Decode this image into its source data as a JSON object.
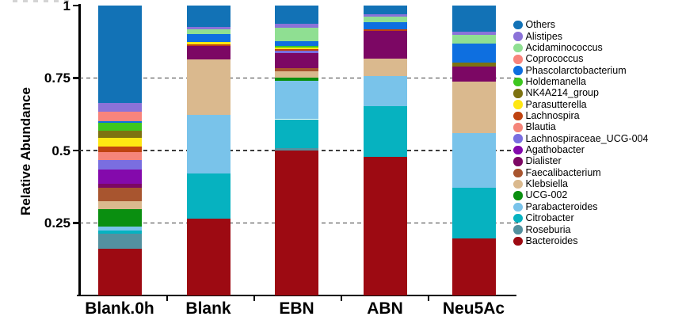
{
  "chart_data": {
    "type": "bar",
    "stacked": true,
    "ylabel": "Relative Abundance",
    "ylim": [
      0,
      1
    ],
    "yticks": [
      {
        "value": 1,
        "label": "1"
      },
      {
        "value": 0.75,
        "label": "0.75"
      },
      {
        "value": 0.5,
        "label": "0.5"
      },
      {
        "value": 0.25,
        "label": "0.25"
      }
    ],
    "gridlines": {
      "values": [
        0.75,
        0.5,
        0.25
      ],
      "style": "dashed",
      "color": "#3c3c3c"
    },
    "legend_position": "right",
    "categories": [
      "Blank.0h",
      "Blank",
      "EBN",
      "ABN",
      "Neu5Ac"
    ],
    "series": [
      {
        "name": "Others",
        "color": "#1272b6",
        "values": [
          0.337,
          0.075,
          0.064,
          0.03,
          0.09
        ]
      },
      {
        "name": "Alistipes",
        "color": "#8b72d8",
        "values": [
          0.028,
          0.007,
          0.013,
          0.007,
          0.011
        ]
      },
      {
        "name": "Acidaminococcus",
        "color": "#8fdf92",
        "values": [
          0.0,
          0.016,
          0.045,
          0.021,
          0.029
        ]
      },
      {
        "name": "Coprococcus",
        "color": "#f8847c",
        "values": [
          0.033,
          0.0,
          0.0,
          0.0,
          0.0
        ]
      },
      {
        "name": "Phascolarctobacterium",
        "color": "#0e6fe0",
        "values": [
          0.007,
          0.028,
          0.016,
          0.023,
          0.068
        ]
      },
      {
        "name": "Holdemanella",
        "color": "#3dc71f",
        "values": [
          0.026,
          0.0,
          0.006,
          0.0,
          0.0
        ]
      },
      {
        "name": "NK4A214_group",
        "color": "#7d7211",
        "values": [
          0.026,
          0.0,
          0.0,
          0.0,
          0.011
        ]
      },
      {
        "name": "Parasutterella",
        "color": "#fee712",
        "values": [
          0.028,
          0.007,
          0.006,
          0.0,
          0.0
        ]
      },
      {
        "name": "Lachnospira",
        "color": "#bf4310",
        "values": [
          0.02,
          0.006,
          0.006,
          0.006,
          0.0
        ]
      },
      {
        "name": "Blautia",
        "color": "#f5857a",
        "values": [
          0.028,
          0.0,
          0.0,
          0.0,
          0.0
        ]
      },
      {
        "name": "Lachnospiraceae_UCG-004",
        "color": "#7a6ee0",
        "values": [
          0.032,
          0.0,
          0.008,
          0.0,
          0.0
        ]
      },
      {
        "name": "Agathobacter",
        "color": "#8409ac",
        "values": [
          0.05,
          0.0,
          0.0,
          0.0,
          0.0
        ]
      },
      {
        "name": "Dialister",
        "color": "#7c0764",
        "values": [
          0.014,
          0.046,
          0.053,
          0.097,
          0.053
        ]
      },
      {
        "name": "Faecalibacterium",
        "color": "#a8552f",
        "values": [
          0.046,
          0.0,
          0.009,
          0.0,
          0.0
        ]
      },
      {
        "name": "Klebsiella",
        "color": "#dab98e",
        "values": [
          0.028,
          0.191,
          0.022,
          0.058,
          0.177
        ]
      },
      {
        "name": "UCG-002",
        "color": "#0a8f10",
        "values": [
          0.058,
          0.0,
          0.011,
          0.0,
          0.0
        ]
      },
      {
        "name": "Parabacteroides",
        "color": "#79c3ea",
        "values": [
          0.014,
          0.202,
          0.133,
          0.104,
          0.19
        ]
      },
      {
        "name": "Citrobacter",
        "color": "#06b2c0",
        "values": [
          0.012,
          0.156,
          0.099,
          0.176,
          0.175
        ]
      },
      {
        "name": "Roseburia",
        "color": "#53919f",
        "values": [
          0.053,
          0.0,
          0.009,
          0.0,
          0.0
        ]
      },
      {
        "name": "Bacteroides",
        "color": "#9d0a12",
        "values": [
          0.16,
          0.266,
          0.5,
          0.478,
          0.196
        ]
      }
    ]
  }
}
